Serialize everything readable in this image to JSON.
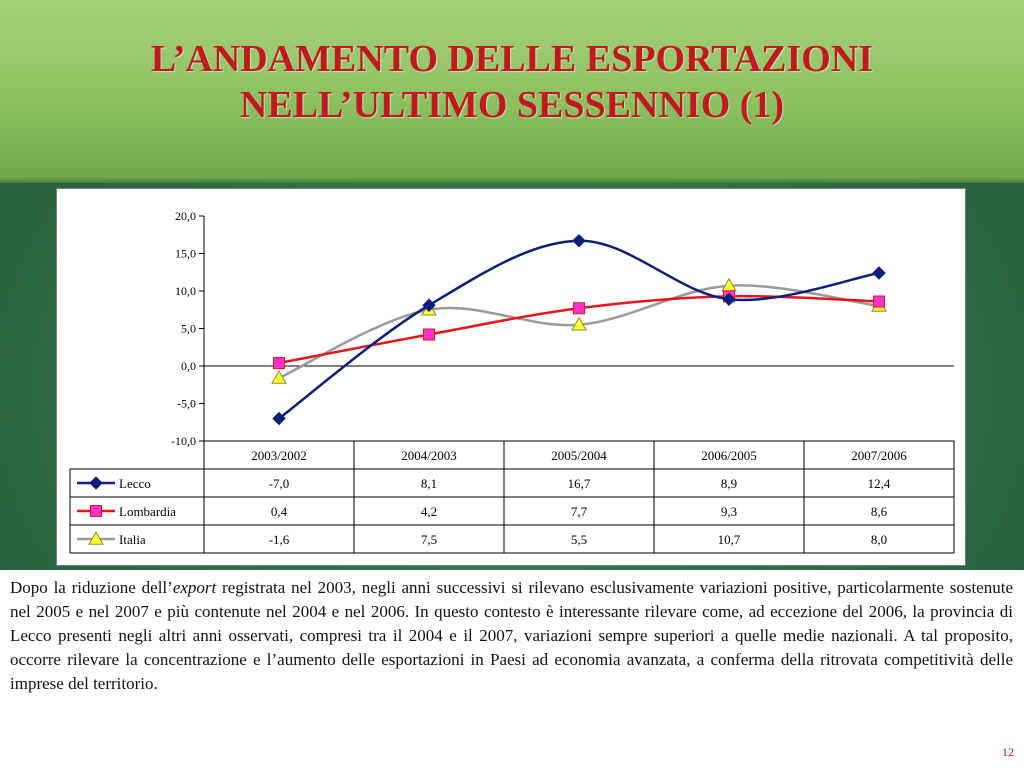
{
  "slide": {
    "title_line1": "L’ANDAMENTO DELLE ESPORTAZIONI",
    "title_line2": "NELL’ULTIMO SESSENNIO (1)",
    "body_pre": "Dopo la riduzione dell’",
    "body_em": "export",
    "body_post": " registrata nel 2003, negli anni successivi si rilevano esclusivamente variazioni positive, particolarmente sostenute nel 2005 e nel 2007 e più contenute nel 2004 e nel 2006. In questo contesto è interessante rilevare come, ad eccezione del 2006, la provincia di Lecco presenti negli altri anni osservati, compresi tra il 2004 e il 2007, variazioni sempre superiori a quelle medie nazionali. A tal proposito, occorre rilevare la concentrazione e l’aumento delle esportazioni in Paesi ad economia avanzata, a conferma della ritrovata competitività delle imprese del territorio.",
    "page_number": "12",
    "colors": {
      "title": "#c0181f",
      "background_green": "#2f6f47"
    }
  },
  "chart_data": {
    "type": "line",
    "categories": [
      "2003/2002",
      "2004/2003",
      "2005/2004",
      "2006/2005",
      "2007/2006"
    ],
    "series": [
      {
        "name": "Lecco",
        "values": [
          -7.0,
          8.1,
          16.7,
          8.9,
          12.4
        ],
        "labels": [
          "-7,0",
          "8,1",
          "16,7",
          "8,9",
          "12,4"
        ],
        "color": "#0a1f7a",
        "marker": "diamond"
      },
      {
        "name": "Lombardia",
        "values": [
          0.4,
          4.2,
          7.7,
          9.3,
          8.6
        ],
        "labels": [
          "0,4",
          "4,2",
          "7,7",
          "9,3",
          "8,6"
        ],
        "color": "#e8141b",
        "marker": "square",
        "marker_color": "#ff33cc"
      },
      {
        "name": "Italia",
        "values": [
          -1.6,
          7.5,
          5.5,
          10.7,
          8.0
        ],
        "labels": [
          "-1,6",
          "7,5",
          "5,5",
          "10,7",
          "8,0"
        ],
        "color": "#9a9a9a",
        "marker": "triangle",
        "marker_color": "#ffff33"
      }
    ],
    "ylim": [
      -10,
      20
    ],
    "yticks": [
      20,
      15,
      10,
      5,
      0,
      -5,
      -10
    ],
    "ytick_labels": [
      "20,0",
      "15,0",
      "10,0",
      "5,0",
      "0,0",
      "-5,0",
      "-10,0"
    ],
    "smooth": true,
    "grid": false,
    "data_table": true,
    "legend": "data-table-left"
  }
}
